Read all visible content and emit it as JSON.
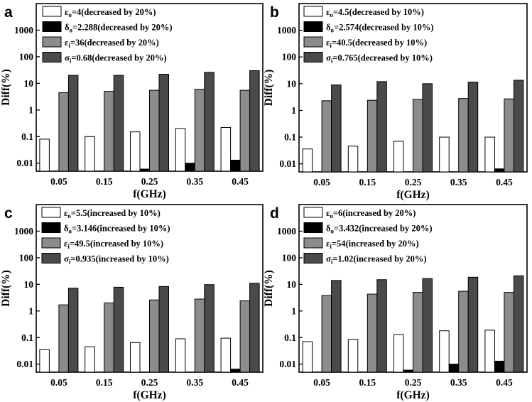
{
  "figure": {
    "series_colors": [
      "#ffffff",
      "#000000",
      "#8c8c8c",
      "#4a4a4a"
    ],
    "series_icons": [
      "white-bar",
      "black-bar",
      "light-gray-bar",
      "dark-gray-bar"
    ]
  },
  "chart_data": [
    {
      "panel": "a",
      "type": "bar",
      "xlabel": "f(GHz)",
      "ylabel": "Diff(%)",
      "yscale": "log",
      "ylim": [
        0.005,
        10000
      ],
      "yticks": [
        "0.01",
        "0.1",
        "1",
        "10",
        "100",
        "1000"
      ],
      "categories": [
        "0.05",
        "0.15",
        "0.25",
        "0.35",
        "0.45"
      ],
      "legend_position": "top-left",
      "series": [
        {
          "symbol": "ε",
          "sub": "o",
          "label": "=4(decreased by 20%)",
          "values": [
            0.08,
            0.1,
            0.15,
            0.2,
            0.22
          ]
        },
        {
          "symbol": "δ",
          "sub": "o",
          "label": "=2.288(decreased by 20%)",
          "values": [
            0,
            0,
            0.006,
            0.01,
            0.013
          ]
        },
        {
          "symbol": "ε",
          "sub": "i",
          "label": "=36(decreased by 20%)",
          "values": [
            4.5,
            5,
            5.5,
            6,
            5.5
          ]
        },
        {
          "symbol": "σ",
          "sub": "i",
          "label": "=0.68(decreased by 20%)",
          "values": [
            20,
            20,
            22,
            26,
            30
          ]
        }
      ]
    },
    {
      "panel": "b",
      "type": "bar",
      "xlabel": "f(GHz)",
      "ylabel": "Diff(%)",
      "yscale": "log",
      "ylim": [
        0.005,
        10000
      ],
      "yticks": [
        "0.01",
        "0.1",
        "1",
        "10",
        "100",
        "1000"
      ],
      "categories": [
        "0.05",
        "0.15",
        "0.25",
        "0.35",
        "0.45"
      ],
      "legend_position": "top-left",
      "series": [
        {
          "symbol": "ε",
          "sub": "o",
          "label": "=4.5(decreased by 10%)",
          "values": [
            0.036,
            0.046,
            0.07,
            0.1,
            0.1
          ]
        },
        {
          "symbol": "δ",
          "sub": "o",
          "label": "=2.574(decreased by 10%)",
          "values": [
            0,
            0,
            0,
            0,
            0.0065
          ]
        },
        {
          "symbol": "ε",
          "sub": "i",
          "label": "=40.5(decreased by 10%)",
          "values": [
            2.3,
            2.4,
            2.6,
            2.8,
            2.7
          ]
        },
        {
          "symbol": "σ",
          "sub": "i",
          "label": "=0.765(decreased by 10%)",
          "values": [
            9,
            12,
            10,
            11.5,
            13.5
          ]
        }
      ]
    },
    {
      "panel": "c",
      "type": "bar",
      "xlabel": "f(GHz)",
      "ylabel": "Diff(%)",
      "yscale": "log",
      "ylim": [
        0.005,
        10000
      ],
      "yticks": [
        "0.01",
        "0.1",
        "1",
        "10",
        "100",
        "1000"
      ],
      "categories": [
        "0.05",
        "0.15",
        "0.25",
        "0.35",
        "0.45"
      ],
      "legend_position": "top-left",
      "series": [
        {
          "symbol": "ε",
          "sub": "o",
          "label": "=5.5(increased by 10%)",
          "values": [
            0.035,
            0.045,
            0.065,
            0.09,
            0.095
          ]
        },
        {
          "symbol": "δ",
          "sub": "o",
          "label": "=3.146(increased by 10%)",
          "values": [
            0,
            0,
            0,
            0,
            0.0065
          ]
        },
        {
          "symbol": "ε",
          "sub": "i",
          "label": "=49.5(increased by 10%)",
          "values": [
            1.7,
            2,
            2.6,
            2.8,
            2.4
          ]
        },
        {
          "symbol": "σ",
          "sub": "i",
          "label": "=0.935(increased by 10%)",
          "values": [
            7.2,
            7.8,
            8.3,
            9.8,
            11
          ]
        }
      ]
    },
    {
      "panel": "d",
      "type": "bar",
      "xlabel": "f(GHz)",
      "ylabel": "Diff(%)",
      "yscale": "log",
      "ylim": [
        0.005,
        10000
      ],
      "yticks": [
        "0.01",
        "0.1",
        "1",
        "10",
        "100",
        "1000"
      ],
      "categories": [
        "0.05",
        "0.15",
        "0.25",
        "0.35",
        "0.45"
      ],
      "legend_position": "top-left",
      "series": [
        {
          "symbol": "ε",
          "sub": "o",
          "label": "=6(increased by 20%)",
          "values": [
            0.07,
            0.085,
            0.13,
            0.18,
            0.19
          ]
        },
        {
          "symbol": "δ",
          "sub": "o",
          "label": "=3.432(increased by 20%)",
          "values": [
            0,
            0,
            0.006,
            0.01,
            0.013
          ]
        },
        {
          "symbol": "ε",
          "sub": "i",
          "label": "=54(increased by 20%)",
          "values": [
            3.8,
            4.3,
            5,
            5.5,
            5
          ]
        },
        {
          "symbol": "σ",
          "sub": "i",
          "label": "=1.02(increased by 20%)",
          "values": [
            14,
            15,
            16.5,
            18.5,
            21
          ]
        }
      ]
    }
  ]
}
